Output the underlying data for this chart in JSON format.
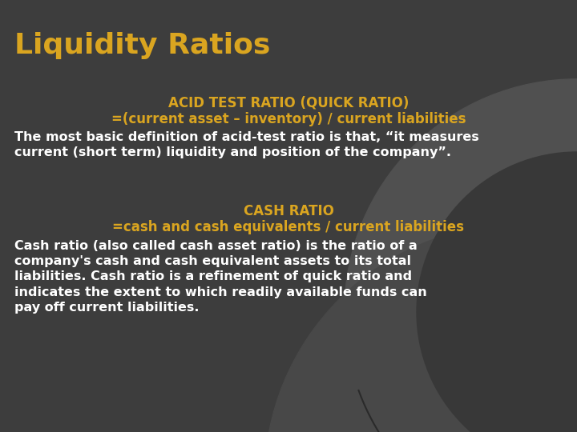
{
  "title": "Liquidity Ratios",
  "title_color": "#DAA520",
  "title_fontsize": 26,
  "bg_color": "#3d3d3d",
  "section1_heading1": "ACID TEST RATIO (QUICK RATIO)",
  "section1_heading2": "=(current asset – inventory) / current liabilities",
  "section1_heading_color": "#DAA520",
  "section1_heading_fontsize": 12,
  "section1_body": "The most basic definition of acid-test ratio is that, “it measures\ncurrent (short term) liquidity and position of the company”.",
  "section1_body_color": "#ffffff",
  "section1_body_fontsize": 11.5,
  "section2_heading1": "CASH RATIO",
  "section2_heading2": "=cash and cash equivalents / current liabilities",
  "section2_heading_color": "#DAA520",
  "section2_heading_fontsize": 12,
  "section2_body": "Cash ratio (also called cash asset ratio) is the ratio of a\ncompany's cash and cash equivalent assets to its total\nliabilities. Cash ratio is a refinement of quick ratio and\nindicates the extent to which readily available funds can\npay off current liabilities.",
  "section2_body_color": "#ffffff",
  "section2_body_fontsize": 11.5,
  "curve_color1": "#505050",
  "curve_color2": "#484848",
  "curve_color3": "#383838"
}
